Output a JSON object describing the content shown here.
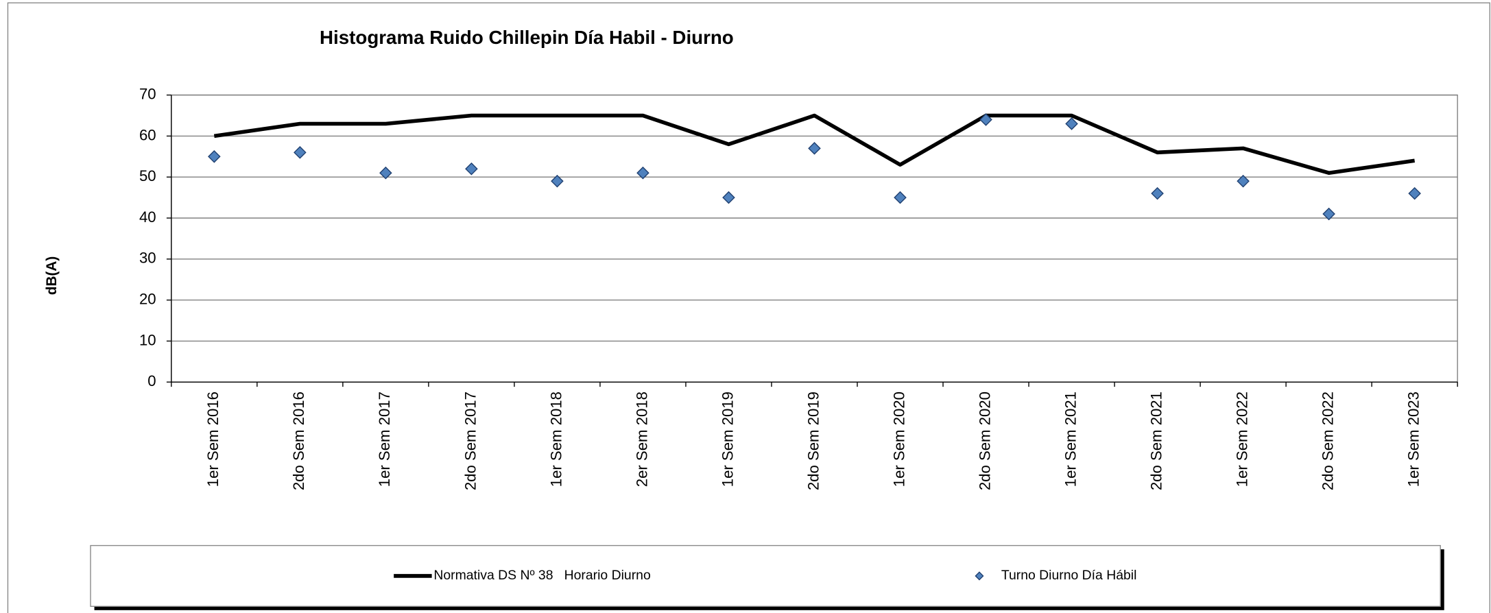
{
  "chart_data": {
    "type": "line",
    "title": "Histograma Ruido Chillepin Día Habil - Diurno",
    "y_label": "dB(A)",
    "categories": [
      "1er Sem 2016",
      "2do Sem 2016",
      "1er Sem 2017",
      "2do Sem 2017",
      "1er Sem 2018",
      "2er Sem 2018",
      "1er Sem 2019",
      "2do Sem 2019",
      "1er Sem 2020",
      "2do Sem 2020",
      "1er Sem 2021",
      "2do Sem 2021",
      "1er Sem 2022",
      "2do Sem 2022",
      "1er Sem 2023"
    ],
    "series": [
      {
        "name": "Normativa DS Nº 38   Horario Diurno",
        "color": "#000000",
        "style": "line",
        "values": [
          60,
          63,
          63,
          65,
          65,
          65,
          58,
          65,
          53,
          65,
          65,
          56,
          57,
          51,
          54
        ]
      },
      {
        "name": "Turno Diurno Día Hábil",
        "color": "#4f81bd",
        "style": "markers",
        "values": [
          55,
          56,
          51,
          52,
          49,
          51,
          45,
          57,
          45,
          64,
          63,
          46,
          49,
          41,
          46
        ]
      }
    ],
    "ylim": [
      0,
      70
    ],
    "yticks": [
      0,
      10,
      20,
      30,
      40,
      50,
      60,
      70
    ],
    "grid": true,
    "legend": "bottom"
  }
}
